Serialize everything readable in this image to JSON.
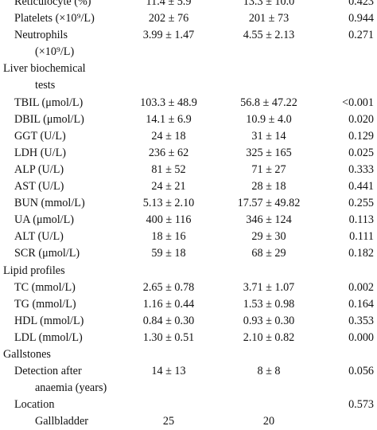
{
  "rows": [
    {
      "label": "Reticulocyte (%)",
      "group1": "11.4 ± 5.9",
      "group2": "13.3 ± 10.0",
      "p": "0.423"
    },
    {
      "label": "Platelets (×10⁹/L)",
      "group1": "202 ± 76",
      "group2": "201 ± 73",
      "p": "0.944"
    },
    {
      "label": "Neutrophils",
      "group1": "3.99 ± 1.47",
      "group2": "4.55 ± 2.13",
      "p": "0.271"
    },
    {
      "label": "(×10⁹/L)",
      "group1": "",
      "group2": "",
      "p": "",
      "continuation": true
    },
    {
      "label": "Liver biochemical",
      "group1": "",
      "group2": "",
      "p": "",
      "section": true
    },
    {
      "label": "tests",
      "group1": "",
      "group2": "",
      "p": "",
      "continuation": true
    },
    {
      "label": "TBIL (μmol/L)",
      "group1": "103.3 ± 48.9",
      "group2": "56.8 ± 47.22",
      "p": "<0.001"
    },
    {
      "label": "DBIL (μmol/L)",
      "group1": "14.1 ± 6.9",
      "group2": "10.9 ± 4.0",
      "p": "0.020"
    },
    {
      "label": "GGT (U/L)",
      "group1": "24 ± 18",
      "group2": "31 ± 14",
      "p": "0.129"
    },
    {
      "label": "LDH (U/L)",
      "group1": "236 ± 62",
      "group2": "325 ± 165",
      "p": "0.025"
    },
    {
      "label": "ALP (U/L)",
      "group1": "81 ± 52",
      "group2": "71 ± 27",
      "p": "0.333"
    },
    {
      "label": "AST (U/L)",
      "group1": "24 ± 21",
      "group2": "28 ± 18",
      "p": "0.441"
    },
    {
      "label": "BUN (mmol/L)",
      "group1": "5.13 ± 2.10",
      "group2": "17.57 ± 49.82",
      "p": "0.255"
    },
    {
      "label": "UA (μmol/L)",
      "group1": "400 ± 116",
      "group2": "346 ± 124",
      "p": "0.113"
    },
    {
      "label": "ALT (U/L)",
      "group1": "18 ± 16",
      "group2": "29 ± 30",
      "p": "0.111"
    },
    {
      "label": "SCR (μmol/L)",
      "group1": "59 ± 18",
      "group2": "68 ± 29",
      "p": "0.182"
    },
    {
      "label": "Lipid profiles",
      "group1": "",
      "group2": "",
      "p": "",
      "section": true
    },
    {
      "label": "TC (mmol/L)",
      "group1": "2.65 ± 0.78",
      "group2": "3.71 ± 1.07",
      "p": "0.002"
    },
    {
      "label": "TG (mmol/L)",
      "group1": "1.16 ± 0.44",
      "group2": "1.53 ± 0.98",
      "p": "0.164"
    },
    {
      "label": "HDL (mmol/L)",
      "group1": "0.84 ± 0.30",
      "group2": "0.93 ± 0.30",
      "p": "0.353"
    },
    {
      "label": "LDL (mmol/L)",
      "group1": "1.30 ± 0.51",
      "group2": "2.10 ± 0.82",
      "p": "0.000"
    },
    {
      "label": "Gallstones",
      "group1": "",
      "group2": "",
      "p": "",
      "section": true
    },
    {
      "label": "Detection after",
      "group1": "14 ± 13",
      "group2": "8 ± 8",
      "p": "0.056"
    },
    {
      "label": "anaemia (years)",
      "group1": "",
      "group2": "",
      "p": "",
      "continuation": true
    },
    {
      "label": "Location",
      "group1": "",
      "group2": "",
      "p": "0.573"
    },
    {
      "label": "Gallbladder",
      "group1": "25",
      "group2": "20",
      "p": "",
      "continuation": true
    }
  ]
}
